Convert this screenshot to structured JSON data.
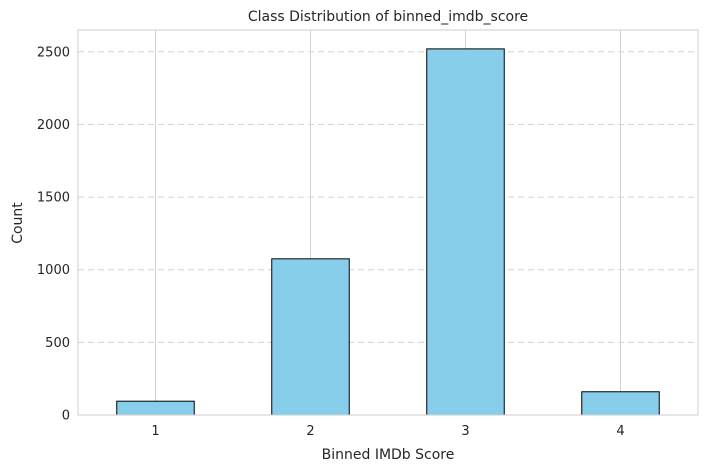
{
  "chart_data": {
    "type": "bar",
    "title": "Class Distribution of binned_imdb_score",
    "xlabel": "Binned IMDb Score",
    "ylabel": "Count",
    "categories": [
      "1",
      "2",
      "3",
      "4"
    ],
    "values": [
      95,
      1075,
      2520,
      160
    ],
    "ylim": [
      0,
      2650
    ],
    "yticks": [
      0,
      500,
      1000,
      1500,
      2000,
      2500
    ],
    "grid": {
      "x": true,
      "y": true,
      "y_style": "dashed"
    },
    "colors": {
      "bar_fill": "#87CEEB",
      "bar_edge": "#000000",
      "grid": "#d3d3d3",
      "spine": "#cccccc"
    }
  }
}
